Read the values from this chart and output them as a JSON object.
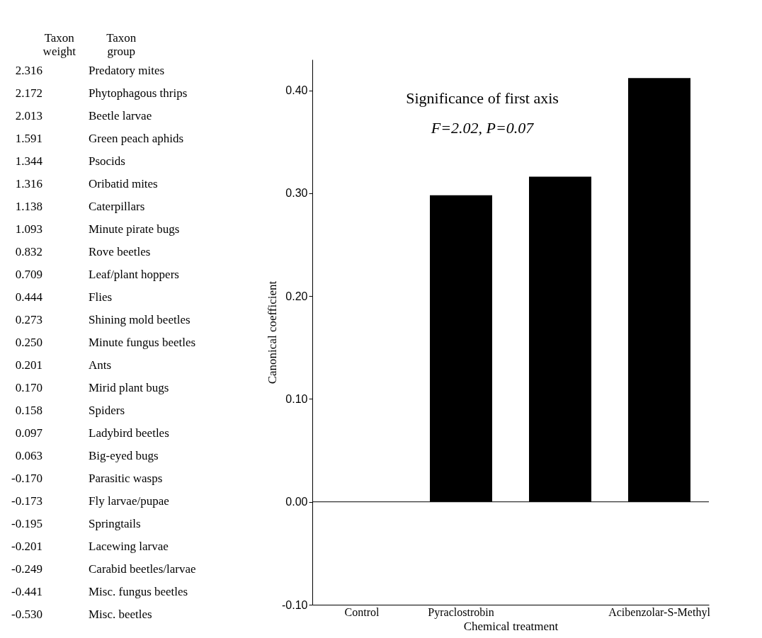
{
  "chart_data": [
    {
      "type": "other",
      "annotations": [
        "Taxon weight",
        "Taxon group"
      ],
      "value_labels": [
        "2.316",
        "2.172",
        "2.013",
        "1.591",
        "1.344",
        "1.316",
        "1.138",
        "1.093",
        "0.832",
        "0.709",
        "0.444",
        "0.273",
        "0.250",
        "0.201",
        "0.170",
        "0.158",
        "0.097",
        "0.063",
        "-0.170",
        "-0.173",
        "-0.195",
        "-0.201",
        "-0.249",
        "-0.441",
        "-0.530"
      ],
      "categories": [
        "Predatory mites",
        "Phytophagous thrips",
        "Beetle larvae",
        "Green peach aphids",
        "Psocids",
        "Oribatid mites",
        "Caterpillars",
        "Minute pirate bugs",
        "Rove beetles",
        "Leaf/plant hoppers",
        "Flies",
        "Shining mold beetles",
        "Minute fungus beetles",
        "Ants",
        "Mirid plant bugs",
        "Spiders",
        "Ladybird beetles",
        "Big-eyed bugs",
        "Parasitic wasps",
        "Fly larvae/pupae",
        "Springtails",
        "Lacewing larvae",
        "Carabid beetles/larvae",
        "Misc. fungus beetles",
        "Misc. beetles"
      ],
      "legend": false
    },
    {
      "type": "bar",
      "xlabel": "Chemical treatment",
      "ylabel": "Canonical coefficient",
      "categories": [
        "Control",
        "Pyraclostrobin",
        null,
        "Acibenzolar-S-Methyl"
      ],
      "series": [
        {
          "color": "#000000",
          "values": [
            0,
            0.298,
            0.316,
            0.412
          ]
        }
      ],
      "ylim": [
        -0.1,
        0.43
      ],
      "yticks": [
        {
          "value": -0.1,
          "label": "-0.10"
        },
        {
          "value": 0,
          "label": "0.00"
        },
        {
          "value": 0.1,
          "label": "0.10"
        },
        {
          "value": 0.2,
          "label": "0.20"
        },
        {
          "value": 0.3,
          "label": "0.30"
        },
        {
          "value": 0.4,
          "label": "0.40"
        }
      ],
      "ref_lines": [
        {
          "axis": "y",
          "value": 0,
          "color": "#000000"
        }
      ],
      "annotations": [
        "Significance of first axis",
        "F=2.02, P=0.07"
      ],
      "grid": false
    }
  ]
}
